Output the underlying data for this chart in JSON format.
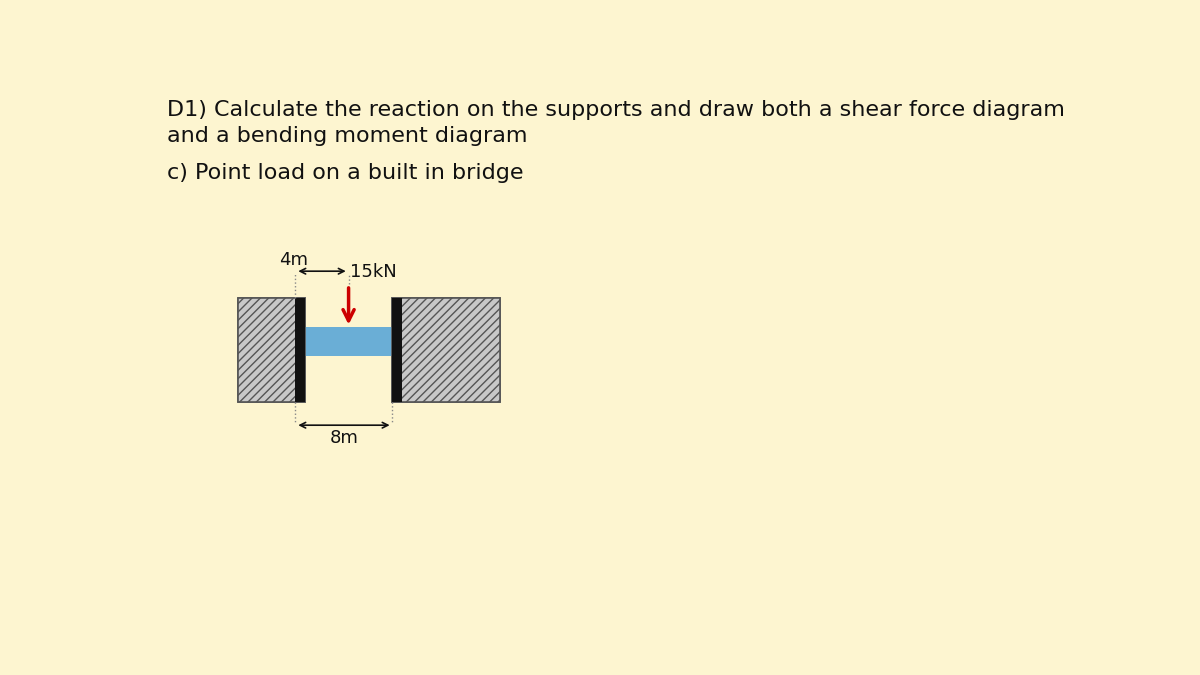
{
  "bg_color": "#fdf5d0",
  "title_line1": "D1) Calculate the reaction on the supports and draw both a shear force diagram",
  "title_line2": "and a bending moment diagram",
  "subtitle": "c) Point load on a built in bridge",
  "load_label": "15kN",
  "dim_4m": "4m",
  "dim_8m": "8m",
  "beam_color": "#6aaed6",
  "arrow_color": "#cc0000",
  "text_color": "#111111",
  "hatch_fc": "#c8c8c8",
  "col_fc": "#111111",
  "title_fontsize": 16,
  "subtitle_fontsize": 16,
  "label_fontsize": 13
}
